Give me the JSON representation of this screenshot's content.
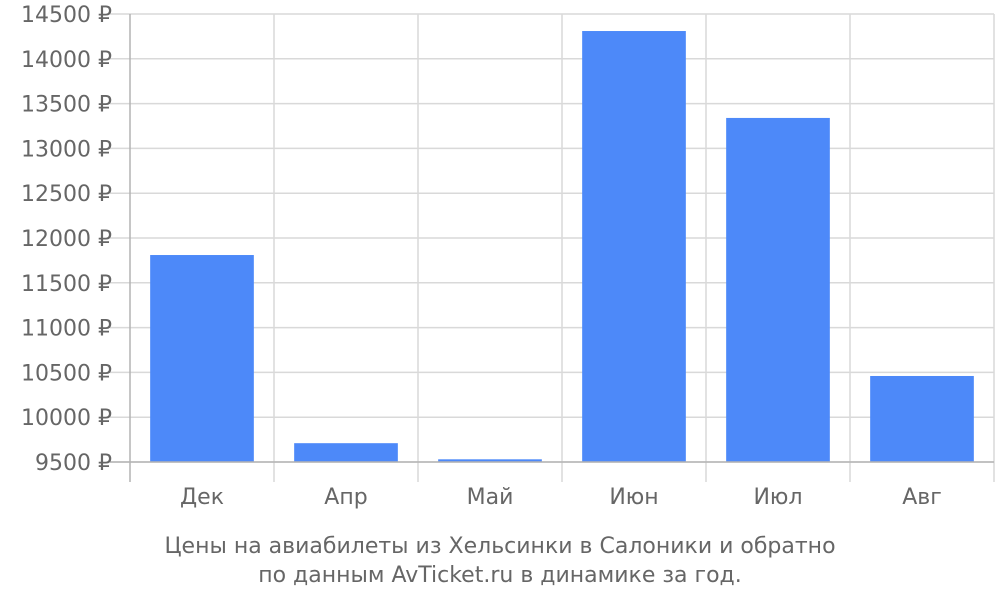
{
  "chart_data": {
    "type": "bar",
    "categories": [
      "Дек",
      "Апр",
      "Май",
      "Июн",
      "Июл",
      "Авг"
    ],
    "values": [
      11810,
      9710,
      9530,
      14310,
      13340,
      10460
    ],
    "ylim": [
      9500,
      14500
    ],
    "yticks": [
      "9500 ₽",
      "10000 ₽",
      "10500 ₽",
      "11000 ₽",
      "11500 ₽",
      "12000 ₽",
      "12500 ₽",
      "13000 ₽",
      "13500 ₽",
      "14000 ₽",
      "14500 ₽"
    ],
    "ytick_values": [
      9500,
      10000,
      10500,
      11000,
      11500,
      12000,
      12500,
      13000,
      13500,
      14000,
      14500
    ],
    "grid": true,
    "colors": {
      "bar": "#4d89f9",
      "grid": "#d9d9d9",
      "axis": "#b3b3b3",
      "text": "#666666"
    }
  },
  "caption": {
    "line1": "Цены на авиабилеты из Хельсинки в Салоники и обратно",
    "line2": "по данным AvTicket.ru в динамике за год."
  }
}
